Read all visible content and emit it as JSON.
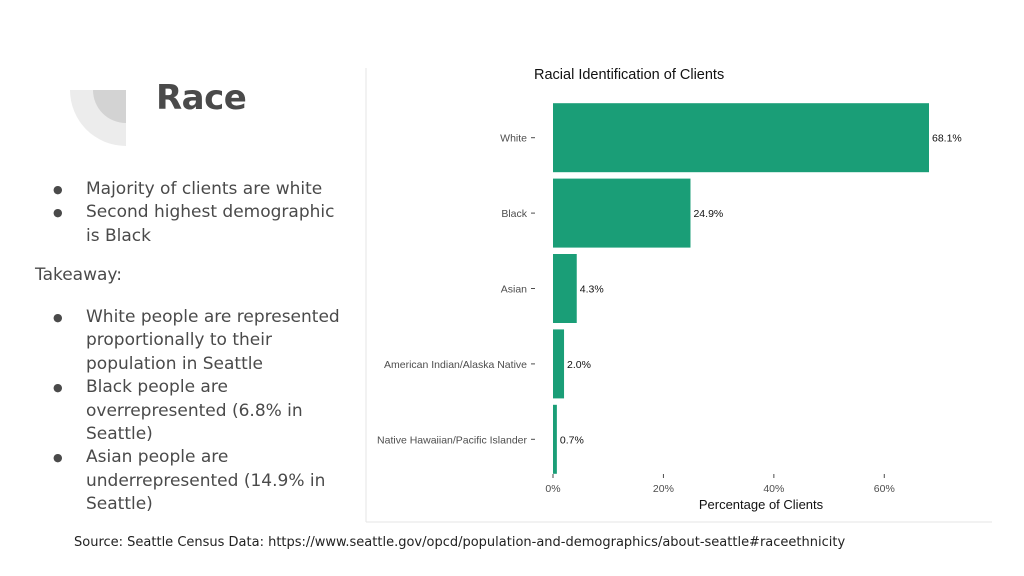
{
  "slide": {
    "title": "Race",
    "bullets_top": [
      "Majority of clients are white",
      "Second highest demographic is Black"
    ],
    "takeaway_label": "Takeaway:",
    "bullets_bottom": [
      "White people are represented proportionally to their population in Seattle",
      "Black people are overrepresented (6.8% in Seattle)",
      "Asian people are underrepresented (14.9% in Seattle)"
    ],
    "source": "Source: Seattle Census Data: https://www.seattle.gov/opcd/population-and-demographics/about-seattle#raceethnicity"
  },
  "colors": {
    "bar": "#1a9e77",
    "deco_light": "#ececec",
    "deco_dark": "#d3d3d3"
  },
  "chart_data": {
    "type": "bar",
    "orientation": "horizontal",
    "title": "Racial Identification of Clients",
    "xlabel": "Percentage of Clients",
    "ylabel": "",
    "categories": [
      "White",
      "Black",
      "Asian",
      "American Indian/Alaska Native",
      "Native Hawaiian/Pacific Islander"
    ],
    "values": [
      68.1,
      24.9,
      4.3,
      2.0,
      0.7
    ],
    "data_labels": [
      "68.1%",
      "24.9%",
      "4.3%",
      "2.0%",
      "0.7%"
    ],
    "xticks": [
      0,
      20,
      40,
      60
    ],
    "xtick_labels": [
      "0%",
      "20%",
      "40%",
      "60%"
    ],
    "xlim": [
      0,
      68.1
    ],
    "grid": false,
    "legend": "none"
  }
}
